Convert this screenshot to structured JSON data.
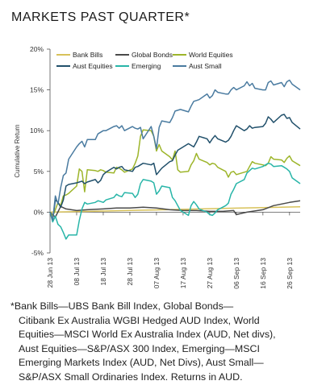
{
  "header": {
    "title": "MARKETS PAST QUARTER*"
  },
  "chart_data": {
    "type": "line",
    "title": "MARKETS PAST QUARTER*",
    "xlabel": "",
    "ylabel": "Cumulative Return",
    "ylim": [
      -5,
      20
    ],
    "yticks": [
      -5,
      0,
      5,
      10,
      15,
      20
    ],
    "ytick_labels": [
      "-5%",
      "0%",
      "5%",
      "10%",
      "15%",
      "20%"
    ],
    "x_dates": [
      "28 Jun 13",
      "08 Jul 13",
      "18 Jul 13",
      "28 Jul 13",
      "07 Aug 13",
      "17 Aug 13",
      "27 Aug 13",
      "06 Sep 13",
      "16 Sep 13",
      "26 Sep 13"
    ],
    "xlim": [
      "28 Jun 13",
      "30 Sep 13"
    ],
    "grid": false,
    "legend_position": "top",
    "series": [
      {
        "name": "Bank Bills",
        "color": "#d8c25a",
        "x": [
          "28 Jun 13",
          "08 Jul 13",
          "18 Jul 13",
          "28 Jul 13",
          "07 Aug 13",
          "17 Aug 13",
          "27 Aug 13",
          "06 Sep 13",
          "16 Sep 13",
          "26 Sep 13",
          "30 Sep 13"
        ],
        "values": [
          0.0,
          0.07,
          0.14,
          0.21,
          0.28,
          0.35,
          0.42,
          0.49,
          0.56,
          0.63,
          0.66
        ]
      },
      {
        "name": "Global Bonds",
        "color": "#4a4a4a",
        "x": [
          "28 Jun 13",
          "30 Jun 13",
          "02 Jul 13",
          "04 Jul 13",
          "08 Jul 13",
          "12 Jul 13",
          "18 Jul 13",
          "23 Jul 13",
          "28 Jul 13",
          "02 Aug 13",
          "07 Aug 13",
          "12 Aug 13",
          "17 Aug 13",
          "22 Aug 13",
          "27 Aug 13",
          "01 Sep 13",
          "05 Sep 13",
          "06 Sep 13",
          "10 Sep 13",
          "16 Sep 13",
          "20 Sep 13",
          "26 Sep 13",
          "30 Sep 13"
        ],
        "values": [
          0.0,
          -0.6,
          0.7,
          0.4,
          0.2,
          0.3,
          0.4,
          0.5,
          0.5,
          0.6,
          0.5,
          0.3,
          0.2,
          0.2,
          0.1,
          0.1,
          0.2,
          -0.3,
          0.0,
          0.3,
          0.8,
          1.2,
          1.4
        ]
      },
      {
        "name": "World Equities",
        "color": "#9db52a",
        "x": [
          "28 Jun 13",
          "29 Jun 13",
          "30 Jun 13",
          "01 Jul 13",
          "02 Jul 13",
          "03 Jul 13",
          "04 Jul 13",
          "05 Jul 13",
          "08 Jul 13",
          "09 Jul 13",
          "10 Jul 13",
          "11 Jul 13",
          "12 Jul 13",
          "15 Jul 13",
          "16 Jul 13",
          "17 Jul 13",
          "18 Jul 13",
          "19 Jul 13",
          "22 Jul 13",
          "23 Jul 13",
          "24 Jul 13",
          "25 Jul 13",
          "26 Jul 13",
          "29 Jul 13",
          "30 Jul 13",
          "31 Jul 13",
          "01 Aug 13",
          "02 Aug 13",
          "05 Aug 13",
          "06 Aug 13",
          "07 Aug 13",
          "08 Aug 13",
          "09 Aug 13",
          "12 Aug 13",
          "13 Aug 13",
          "14 Aug 13",
          "15 Aug 13",
          "16 Aug 13",
          "19 Aug 13",
          "20 Aug 13",
          "21 Aug 13",
          "22 Aug 13",
          "23 Aug 13",
          "26 Aug 13",
          "27 Aug 13",
          "28 Aug 13",
          "29 Aug 13",
          "30 Aug 13",
          "02 Sep 13",
          "03 Sep 13",
          "04 Sep 13",
          "05 Sep 13",
          "06 Sep 13",
          "09 Sep 13",
          "10 Sep 13",
          "11 Sep 13",
          "12 Sep 13",
          "13 Sep 13",
          "16 Sep 13",
          "17 Sep 13",
          "18 Sep 13",
          "19 Sep 13",
          "20 Sep 13",
          "23 Sep 13",
          "24 Sep 13",
          "25 Sep 13",
          "26 Sep 13",
          "27 Sep 13",
          "30 Sep 13"
        ],
        "values": [
          0.0,
          -0.5,
          0.3,
          1.2,
          0.8,
          2.0,
          2.1,
          2.3,
          3.2,
          5.3,
          5.0,
          2.5,
          5.2,
          5.1,
          5.0,
          5.2,
          5.1,
          4.9,
          4.8,
          5.5,
          5.4,
          5.2,
          4.9,
          5.3,
          6.0,
          6.9,
          9.3,
          10.1,
          10.0,
          9.3,
          7.5,
          8.3,
          7.5,
          6.8,
          6.4,
          7.5,
          5.2,
          4.9,
          5.0,
          5.8,
          6.3,
          7.2,
          6.5,
          6.1,
          5.8,
          6.0,
          5.9,
          5.5,
          5.0,
          4.3,
          4.9,
          5.0,
          4.6,
          4.9,
          5.0,
          5.6,
          6.2,
          6.0,
          5.8,
          5.7,
          6.0,
          6.8,
          6.5,
          6.4,
          6.1,
          6.6,
          6.9,
          6.3,
          5.7
        ]
      },
      {
        "name": "Aust Equities",
        "color": "#21506b",
        "x": [
          "28 Jun 13",
          "29 Jun 13",
          "30 Jun 13",
          "01 Jul 13",
          "02 Jul 13",
          "03 Jul 13",
          "04 Jul 13",
          "05 Jul 13",
          "08 Jul 13",
          "09 Jul 13",
          "10 Jul 13",
          "11 Jul 13",
          "12 Jul 13",
          "15 Jul 13",
          "16 Jul 13",
          "17 Jul 13",
          "18 Jul 13",
          "19 Jul 13",
          "22 Jul 13",
          "23 Jul 13",
          "24 Jul 13",
          "25 Jul 13",
          "26 Jul 13",
          "29 Jul 13",
          "30 Jul 13",
          "31 Jul 13",
          "01 Aug 13",
          "02 Aug 13",
          "05 Aug 13",
          "06 Aug 13",
          "07 Aug 13",
          "08 Aug 13",
          "09 Aug 13",
          "12 Aug 13",
          "13 Aug 13",
          "14 Aug 13",
          "15 Aug 13",
          "16 Aug 13",
          "19 Aug 13",
          "20 Aug 13",
          "21 Aug 13",
          "22 Aug 13",
          "23 Aug 13",
          "26 Aug 13",
          "27 Aug 13",
          "28 Aug 13",
          "29 Aug 13",
          "30 Aug 13",
          "02 Sep 13",
          "03 Sep 13",
          "04 Sep 13",
          "05 Sep 13",
          "06 Sep 13",
          "09 Sep 13",
          "10 Sep 13",
          "11 Sep 13",
          "12 Sep 13",
          "13 Sep 13",
          "16 Sep 13",
          "17 Sep 13",
          "18 Sep 13",
          "19 Sep 13",
          "20 Sep 13",
          "23 Sep 13",
          "24 Sep 13",
          "25 Sep 13",
          "26 Sep 13",
          "27 Sep 13",
          "30 Sep 13"
        ],
        "values": [
          0.0,
          -1.0,
          1.5,
          1.2,
          0.6,
          1.5,
          3.2,
          3.4,
          3.6,
          3.7,
          3.8,
          3.5,
          3.7,
          4.0,
          3.6,
          3.9,
          4.6,
          4.9,
          5.5,
          5.3,
          5.5,
          5.6,
          5.2,
          5.0,
          5.5,
          5.6,
          5.8,
          6.0,
          5.8,
          6.0,
          4.6,
          5.0,
          5.4,
          6.2,
          6.3,
          7.0,
          7.6,
          7.8,
          8.4,
          8.2,
          8.0,
          8.6,
          9.3,
          9.0,
          8.5,
          9.0,
          9.4,
          9.0,
          8.6,
          8.8,
          9.3,
          10.0,
          10.6,
          10.0,
          10.2,
          10.6,
          10.3,
          10.4,
          10.5,
          10.9,
          11.7,
          11.4,
          11.0,
          11.9,
          12.0,
          11.5,
          11.6,
          11.0,
          10.2
        ]
      },
      {
        "name": "Emerging",
        "color": "#28b5a8",
        "x": [
          "28 Jun 13",
          "29 Jun 13",
          "30 Jun 13",
          "01 Jul 13",
          "02 Jul 13",
          "03 Jul 13",
          "04 Jul 13",
          "05 Jul 13",
          "08 Jul 13",
          "09 Jul 13",
          "10 Jul 13",
          "11 Jul 13",
          "12 Jul 13",
          "15 Jul 13",
          "16 Jul 13",
          "17 Jul 13",
          "18 Jul 13",
          "19 Jul 13",
          "22 Jul 13",
          "23 Jul 13",
          "24 Jul 13",
          "25 Jul 13",
          "26 Jul 13",
          "29 Jul 13",
          "30 Jul 13",
          "31 Jul 13",
          "01 Aug 13",
          "02 Aug 13",
          "05 Aug 13",
          "06 Aug 13",
          "07 Aug 13",
          "08 Aug 13",
          "09 Aug 13",
          "12 Aug 13",
          "13 Aug 13",
          "14 Aug 13",
          "15 Aug 13",
          "16 Aug 13",
          "19 Aug 13",
          "20 Aug 13",
          "21 Aug 13",
          "22 Aug 13",
          "23 Aug 13",
          "26 Aug 13",
          "27 Aug 13",
          "28 Aug 13",
          "29 Aug 13",
          "30 Aug 13",
          "02 Sep 13",
          "03 Sep 13",
          "04 Sep 13",
          "05 Sep 13",
          "06 Sep 13",
          "09 Sep 13",
          "10 Sep 13",
          "11 Sep 13",
          "12 Sep 13",
          "13 Sep 13",
          "16 Sep 13",
          "17 Sep 13",
          "18 Sep 13",
          "19 Sep 13",
          "20 Sep 13",
          "23 Sep 13",
          "24 Sep 13",
          "25 Sep 13",
          "26 Sep 13",
          "27 Sep 13",
          "30 Sep 13"
        ],
        "values": [
          0.0,
          -1.2,
          -0.5,
          -1.5,
          -1.8,
          -2.5,
          -3.3,
          -2.8,
          -2.8,
          -1.0,
          0.4,
          1.2,
          1.0,
          1.2,
          1.4,
          1.3,
          1.2,
          1.5,
          1.8,
          2.2,
          2.0,
          1.9,
          2.4,
          2.3,
          1.8,
          2.2,
          3.5,
          4.0,
          3.8,
          3.6,
          2.2,
          2.6,
          3.2,
          3.0,
          1.8,
          1.4,
          0.8,
          0.2,
          -0.4,
          0.8,
          1.3,
          0.9,
          0.4,
          0.0,
          -0.3,
          -0.4,
          -0.1,
          0.3,
          0.8,
          1.1,
          2.2,
          2.8,
          3.5,
          4.0,
          4.8,
          5.1,
          5.4,
          5.3,
          5.6,
          5.8,
          6.0,
          5.9,
          5.6,
          5.7,
          5.5,
          5.3,
          5.0,
          4.2,
          3.5
        ]
      },
      {
        "name": "Aust Small",
        "color": "#4a7ba0",
        "x": [
          "28 Jun 13",
          "29 Jun 13",
          "30 Jun 13",
          "01 Jul 13",
          "02 Jul 13",
          "03 Jul 13",
          "04 Jul 13",
          "05 Jul 13",
          "08 Jul 13",
          "09 Jul 13",
          "10 Jul 13",
          "11 Jul 13",
          "12 Jul 13",
          "15 Jul 13",
          "16 Jul 13",
          "17 Jul 13",
          "18 Jul 13",
          "19 Jul 13",
          "22 Jul 13",
          "23 Jul 13",
          "24 Jul 13",
          "25 Jul 13",
          "26 Jul 13",
          "29 Jul 13",
          "30 Jul 13",
          "31 Jul 13",
          "01 Aug 13",
          "02 Aug 13",
          "05 Aug 13",
          "06 Aug 13",
          "07 Aug 13",
          "08 Aug 13",
          "09 Aug 13",
          "12 Aug 13",
          "13 Aug 13",
          "14 Aug 13",
          "15 Aug 13",
          "16 Aug 13",
          "19 Aug 13",
          "20 Aug 13",
          "21 Aug 13",
          "22 Aug 13",
          "23 Aug 13",
          "26 Aug 13",
          "27 Aug 13",
          "28 Aug 13",
          "29 Aug 13",
          "30 Aug 13",
          "02 Sep 13",
          "03 Sep 13",
          "04 Sep 13",
          "05 Sep 13",
          "06 Sep 13",
          "09 Sep 13",
          "10 Sep 13",
          "11 Sep 13",
          "12 Sep 13",
          "13 Sep 13",
          "16 Sep 13",
          "17 Sep 13",
          "18 Sep 13",
          "19 Sep 13",
          "20 Sep 13",
          "23 Sep 13",
          "24 Sep 13",
          "25 Sep 13",
          "26 Sep 13",
          "27 Sep 13",
          "30 Sep 13"
        ],
        "values": [
          0.0,
          -1.0,
          2.0,
          1.0,
          3.0,
          4.5,
          4.8,
          6.5,
          8.0,
          8.4,
          8.7,
          8.0,
          8.9,
          8.9,
          9.6,
          9.8,
          10.0,
          10.0,
          10.5,
          10.6,
          10.3,
          10.6,
          10.0,
          10.5,
          10.3,
          10.2,
          10.4,
          9.0,
          10.5,
          9.3,
          7.8,
          10.4,
          11.2,
          11.0,
          11.6,
          12.4,
          12.5,
          12.6,
          12.3,
          13.0,
          13.6,
          13.7,
          13.8,
          14.5,
          14.0,
          14.3,
          15.0,
          14.7,
          14.5,
          14.5,
          15.0,
          15.3,
          15.0,
          15.5,
          16.0,
          15.5,
          15.8,
          15.2,
          15.0,
          15.0,
          15.9,
          16.1,
          15.6,
          15.9,
          15.4,
          16.0,
          16.2,
          15.7,
          15.0
        ]
      }
    ]
  },
  "footnote": {
    "line1": "*Bank Bills—UBS Bank Bill Index, Global Bonds—",
    "line2": "Citibank Ex Australia WGBI Hedged AUD Index, World",
    "line3": "Equities—MSCI World Ex Australia Index (AUD, Net divs),",
    "line4": "Aust Equities—S&P/ASX 300 Index, Emerging—MSCI",
    "line5": "Emerging Markets Index (AUD, Net Divs),  Aust Small—",
    "line6": "S&P/ASX Small Ordinaries Index. Returns in AUD."
  }
}
